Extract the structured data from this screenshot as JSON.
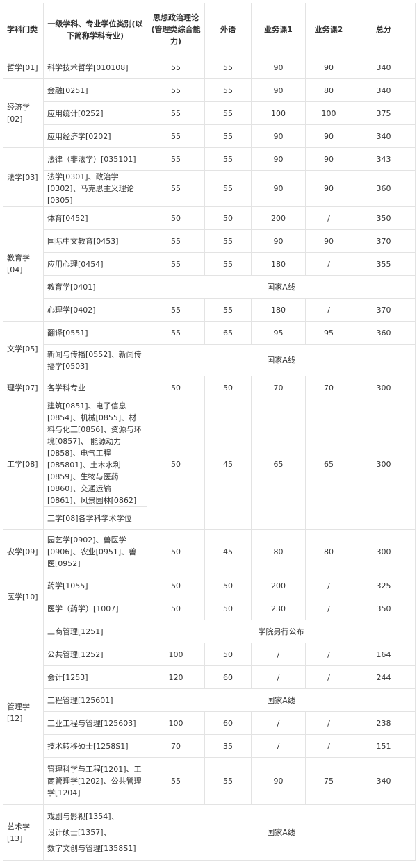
{
  "headers": [
    "学科门类",
    "一级学科、专业学位类别(以下简称学科专业)",
    "思想政治理论(管理类综合能力)",
    "外语",
    "业务课1",
    "业务课2",
    "总分"
  ],
  "groups": [
    {
      "category": "哲学[01]",
      "rows": [
        {
          "name": "科学技术哲学[010108]",
          "scores": [
            "55",
            "55",
            "90",
            "90",
            "340"
          ]
        }
      ]
    },
    {
      "category": "经济学[02]",
      "rows": [
        {
          "name": "金融[0251]",
          "scores": [
            "55",
            "55",
            "90",
            "80",
            "340"
          ]
        },
        {
          "name": "应用统计[0252]",
          "scores": [
            "55",
            "55",
            "100",
            "100",
            "375"
          ]
        },
        {
          "name": "应用经济学[0202]",
          "scores": [
            "55",
            "55",
            "90",
            "90",
            "340"
          ]
        }
      ]
    },
    {
      "category": "法学[03]",
      "rows": [
        {
          "name": "法律（非法学）[035101]",
          "scores": [
            "55",
            "55",
            "90",
            "90",
            "343"
          ]
        },
        {
          "name": "法学[0301]、政治学[0302]、马克思主义理论[0305]",
          "scores": [
            "55",
            "55",
            "90",
            "90",
            "360"
          ],
          "h": "h2"
        }
      ]
    },
    {
      "category": "教育学[04]",
      "rows": [
        {
          "name": "体育[0452]",
          "scores": [
            "50",
            "50",
            "200",
            "/",
            "350"
          ]
        },
        {
          "name": "国际中文教育[0453]",
          "scores": [
            "55",
            "55",
            "90",
            "90",
            "370"
          ]
        },
        {
          "name": "应用心理[0454]",
          "scores": [
            "55",
            "55",
            "180",
            "/",
            "355"
          ]
        },
        {
          "name": "教育学[0401]",
          "merged": "国家A线"
        },
        {
          "name": "心理学[0402]",
          "scores": [
            "55",
            "55",
            "180",
            "/",
            "370"
          ]
        }
      ]
    },
    {
      "category": "文学[05]",
      "rows": [
        {
          "name": "翻译[0551]",
          "scores": [
            "55",
            "65",
            "95",
            "95",
            "360"
          ]
        },
        {
          "name": "新闻与传播[0552]、新闻传播学[0503]",
          "merged": "国家A线",
          "h": "h2"
        }
      ]
    },
    {
      "category": "理学[07]",
      "rows": [
        {
          "name": "各学科专业",
          "scores": [
            "50",
            "50",
            "70",
            "70",
            "300"
          ]
        }
      ]
    },
    {
      "category": "工学[08]",
      "rows": [
        {
          "name": "建筑[0851]、电子信息[0854]、机械[0855]、材料与化工[0856]、资源与环境[0857]、 能源动力[0858]、电气工程[085801]、土木水利[0859]、生物与医药[0860]、交通运输[0861]、风景园林[0862]",
          "scores": [
            "50",
            "45",
            "65",
            "65",
            "300"
          ],
          "span": 2,
          "h": "heng"
        },
        {
          "name": "工学[08]各学科学术学位",
          "covered": true
        }
      ]
    },
    {
      "category": "农学[09]",
      "rows": [
        {
          "name": "园艺学[0902]、兽医学[0906]、农业[0951]、兽医[0952]",
          "scores": [
            "50",
            "45",
            "80",
            "80",
            "300"
          ],
          "h": "h3"
        }
      ]
    },
    {
      "category": "医学[10]",
      "rows": [
        {
          "name": "药学[1055]",
          "scores": [
            "50",
            "50",
            "200",
            "/",
            "325"
          ]
        },
        {
          "name": "医学（药学）[1007]",
          "scores": [
            "50",
            "50",
            "230",
            "/",
            "350"
          ]
        }
      ]
    },
    {
      "category": "管理学[12]",
      "rows": [
        {
          "name": "工商管理[1251]",
          "merged": "学院另行公布"
        },
        {
          "name": "公共管理[1252]",
          "scores": [
            "100",
            "50",
            "/",
            "/",
            "164"
          ]
        },
        {
          "name": "会计[1253]",
          "scores": [
            "120",
            "60",
            "/",
            "/",
            "244"
          ]
        },
        {
          "name": "工程管理[125601]",
          "merged": "国家A线"
        },
        {
          "name": "工业工程与管理[125603]",
          "scores": [
            "100",
            "60",
            "/",
            "/",
            "238"
          ]
        },
        {
          "name": "技术转移硕士[1258S1]",
          "scores": [
            "70",
            "35",
            "/",
            "/",
            "151"
          ]
        },
        {
          "name": "管理科学与工程[1201]、工商管理学[1202]、公共管理学[1204]",
          "scores": [
            "55",
            "55",
            "90",
            "75",
            "340"
          ],
          "h": "hm3"
        }
      ]
    },
    {
      "category": "艺术学[13]",
      "rows": [
        {
          "name": "戏剧与影视[1354]、\n设计硕士[1357]、\n数字文创与管理[1358S1]",
          "merged": "国家A线",
          "h": "hart"
        }
      ]
    }
  ]
}
